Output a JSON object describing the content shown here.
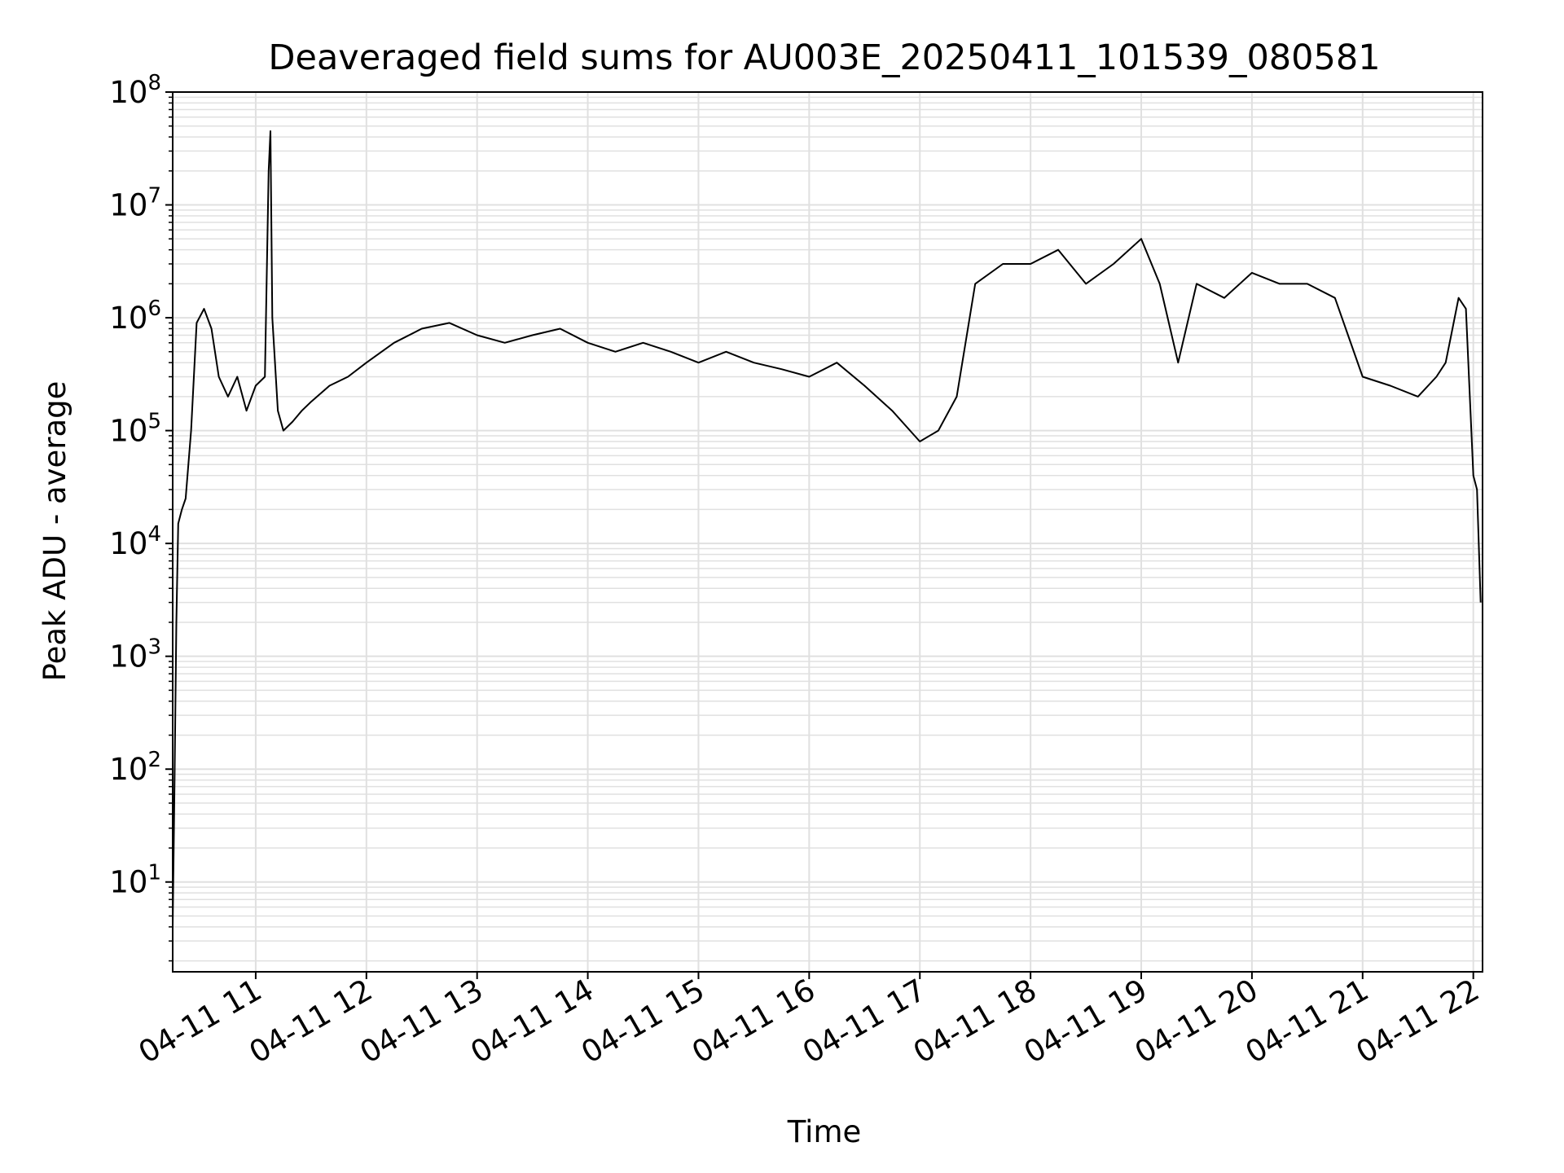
{
  "chart_data": {
    "type": "line",
    "title": "Deaveraged field sums for AU003E_20250411_101539_080581",
    "xlabel": "Time",
    "ylabel": "Peak ADU - average",
    "y_scale": "log",
    "ylim": [
      1.6,
      100000000
    ],
    "xlim": [
      "2025-04-11 10:15",
      "2025-04-11 22:05"
    ],
    "grid": "major and minor",
    "line_color": "#000000",
    "grid_color": "#e0e0e0",
    "x_ticks": [
      {
        "value": "2025-04-11 11:00",
        "label": "04-11 11"
      },
      {
        "value": "2025-04-11 12:00",
        "label": "04-11 12"
      },
      {
        "value": "2025-04-11 13:00",
        "label": "04-11 13"
      },
      {
        "value": "2025-04-11 14:00",
        "label": "04-11 14"
      },
      {
        "value": "2025-04-11 15:00",
        "label": "04-11 15"
      },
      {
        "value": "2025-04-11 16:00",
        "label": "04-11 16"
      },
      {
        "value": "2025-04-11 17:00",
        "label": "04-11 17"
      },
      {
        "value": "2025-04-11 18:00",
        "label": "04-11 18"
      },
      {
        "value": "2025-04-11 19:00",
        "label": "04-11 19"
      },
      {
        "value": "2025-04-11 20:00",
        "label": "04-11 20"
      },
      {
        "value": "2025-04-11 21:00",
        "label": "04-11 21"
      },
      {
        "value": "2025-04-11 22:00",
        "label": "04-11 22"
      }
    ],
    "y_ticks": [
      {
        "value": 10,
        "base": "10",
        "exp": "1"
      },
      {
        "value": 100,
        "base": "10",
        "exp": "2"
      },
      {
        "value": 1000,
        "base": "10",
        "exp": "3"
      },
      {
        "value": 10000,
        "base": "10",
        "exp": "4"
      },
      {
        "value": 100000,
        "base": "10",
        "exp": "5"
      },
      {
        "value": 1000000,
        "base": "10",
        "exp": "6"
      },
      {
        "value": 10000000,
        "base": "10",
        "exp": "7"
      },
      {
        "value": 100000000,
        "base": "10",
        "exp": "8"
      }
    ],
    "series": [
      {
        "x": [
          "2025-04-11 10:15",
          "2025-04-11 10:16",
          "2025-04-11 10:17",
          "2025-04-11 10:18",
          "2025-04-11 10:20",
          "2025-04-11 10:22",
          "2025-04-11 10:25",
          "2025-04-11 10:28",
          "2025-04-11 10:32",
          "2025-04-11 10:36",
          "2025-04-11 10:40",
          "2025-04-11 10:45",
          "2025-04-11 10:50",
          "2025-04-11 10:55",
          "2025-04-11 11:00",
          "2025-04-11 11:05",
          "2025-04-11 11:07",
          "2025-04-11 11:08",
          "2025-04-11 11:09",
          "2025-04-11 11:12",
          "2025-04-11 11:15",
          "2025-04-11 11:20",
          "2025-04-11 11:25",
          "2025-04-11 11:30",
          "2025-04-11 11:40",
          "2025-04-11 11:50",
          "2025-04-11 12:00",
          "2025-04-11 12:15",
          "2025-04-11 12:30",
          "2025-04-11 12:45",
          "2025-04-11 13:00",
          "2025-04-11 13:15",
          "2025-04-11 13:30",
          "2025-04-11 13:45",
          "2025-04-11 14:00",
          "2025-04-11 14:15",
          "2025-04-11 14:30",
          "2025-04-11 14:45",
          "2025-04-11 15:00",
          "2025-04-11 15:15",
          "2025-04-11 15:30",
          "2025-04-11 15:45",
          "2025-04-11 16:00",
          "2025-04-11 16:15",
          "2025-04-11 16:30",
          "2025-04-11 16:45",
          "2025-04-11 17:00",
          "2025-04-11 17:10",
          "2025-04-11 17:20",
          "2025-04-11 17:30",
          "2025-04-11 17:45",
          "2025-04-11 18:00",
          "2025-04-11 18:15",
          "2025-04-11 18:30",
          "2025-04-11 18:45",
          "2025-04-11 19:00",
          "2025-04-11 19:10",
          "2025-04-11 19:20",
          "2025-04-11 19:30",
          "2025-04-11 19:45",
          "2025-04-11 20:00",
          "2025-04-11 20:15",
          "2025-04-11 20:30",
          "2025-04-11 20:45",
          "2025-04-11 21:00",
          "2025-04-11 21:15",
          "2025-04-11 21:30",
          "2025-04-11 21:40",
          "2025-04-11 21:45",
          "2025-04-11 21:48",
          "2025-04-11 21:52",
          "2025-04-11 21:56",
          "2025-04-11 22:00",
          "2025-04-11 22:02",
          "2025-04-11 22:04"
        ],
        "y": [
          4,
          80,
          2000,
          15000,
          20000,
          25000,
          100000,
          900000,
          1200000,
          800000,
          300000,
          200000,
          300000,
          150000,
          250000,
          300000,
          20000000,
          45000000,
          1000000,
          150000,
          100000,
          120000,
          150000,
          180000,
          250000,
          300000,
          400000,
          600000,
          800000,
          900000,
          700000,
          600000,
          700000,
          800000,
          600000,
          500000,
          600000,
          500000,
          400000,
          500000,
          400000,
          350000,
          300000,
          400000,
          250000,
          150000,
          80000,
          100000,
          200000,
          2000000,
          3000000,
          3000000,
          4000000,
          2000000,
          3000000,
          5000000,
          2000000,
          400000,
          2000000,
          1500000,
          2500000,
          2000000,
          2000000,
          1500000,
          300000,
          250000,
          200000,
          300000,
          400000,
          700000,
          1500000,
          1200000,
          40000,
          30000,
          3000
        ]
      }
    ]
  }
}
